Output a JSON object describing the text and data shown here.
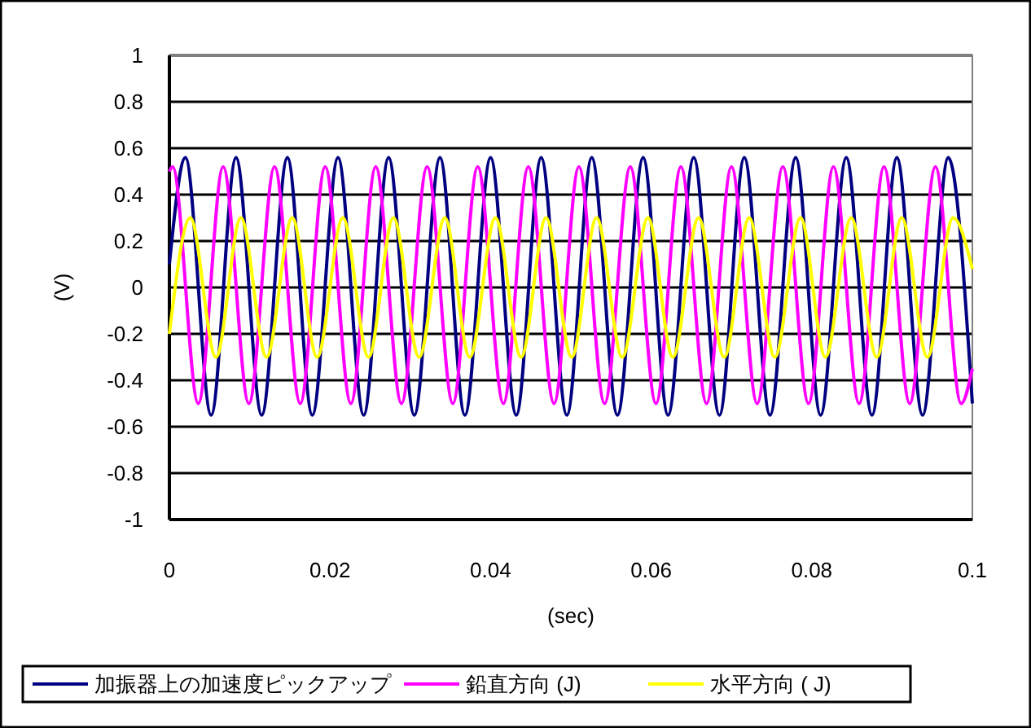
{
  "chart_data": {
    "type": "line",
    "xlabel": "(sec)",
    "ylabel": "(V)",
    "xlim": [
      0,
      0.1
    ],
    "xticks": [
      0,
      0.02,
      0.04,
      0.06,
      0.08,
      0.1
    ],
    "ylim": [
      -1,
      1
    ],
    "yticks": [
      -1,
      -0.8,
      -0.6,
      -0.4,
      -0.2,
      0,
      0.2,
      0.4,
      0.6,
      0.8,
      1
    ],
    "grid": "y",
    "legend": "bottom",
    "marker": "none",
    "line_style": "solid",
    "series": [
      {
        "name": "加振器上の加速度ピックアップ",
        "color": "#000080",
        "x": [
          0,
          0.002,
          0.0052,
          0.0083,
          0.0115,
          0.0147,
          0.0178,
          0.021,
          0.0242,
          0.0273,
          0.0305,
          0.0337,
          0.0368,
          0.04,
          0.0432,
          0.0463,
          0.0495,
          0.0526,
          0.0558,
          0.059,
          0.0621,
          0.0653,
          0.0685,
          0.0716,
          0.0748,
          0.078,
          0.0811,
          0.0843,
          0.0875,
          0.0906,
          0.0938,
          0.097,
          0.1
        ],
        "values": [
          0.1,
          0.56,
          -0.55,
          0.56,
          -0.55,
          0.56,
          -0.55,
          0.56,
          -0.55,
          0.56,
          -0.55,
          0.56,
          -0.55,
          0.56,
          -0.55,
          0.56,
          -0.55,
          0.56,
          -0.55,
          0.56,
          -0.55,
          0.56,
          -0.55,
          0.56,
          -0.55,
          0.56,
          -0.55,
          0.56,
          -0.55,
          0.56,
          -0.55,
          0.56,
          -0.5
        ]
      },
      {
        "name": "鉛直方向 (J)",
        "color": "#ff00ff",
        "x": [
          0,
          0.0004,
          0.0036,
          0.0067,
          0.0099,
          0.0131,
          0.0163,
          0.0194,
          0.0226,
          0.0257,
          0.0289,
          0.0321,
          0.0353,
          0.0384,
          0.0416,
          0.0447,
          0.0479,
          0.051,
          0.0542,
          0.0574,
          0.0606,
          0.0637,
          0.0669,
          0.07,
          0.0732,
          0.0764,
          0.0796,
          0.0827,
          0.0859,
          0.089,
          0.0922,
          0.0954,
          0.0986,
          0.1
        ],
        "values": [
          0.5,
          0.52,
          -0.5,
          0.52,
          -0.5,
          0.52,
          -0.5,
          0.52,
          -0.5,
          0.52,
          -0.5,
          0.52,
          -0.5,
          0.52,
          -0.5,
          0.52,
          -0.5,
          0.52,
          -0.5,
          0.52,
          -0.5,
          0.52,
          -0.5,
          0.52,
          -0.5,
          0.52,
          -0.5,
          0.52,
          -0.5,
          0.52,
          -0.5,
          0.52,
          -0.5,
          -0.35
        ]
      },
      {
        "name": "水平方向 ( J)",
        "color": "#ffff00",
        "x": [
          0,
          0.0026,
          0.0058,
          0.0089,
          0.0121,
          0.0153,
          0.0184,
          0.0216,
          0.0248,
          0.0279,
          0.0311,
          0.0343,
          0.0374,
          0.0406,
          0.0438,
          0.0469,
          0.0501,
          0.0532,
          0.0564,
          0.0596,
          0.0627,
          0.0659,
          0.0691,
          0.0722,
          0.0754,
          0.0786,
          0.0817,
          0.0849,
          0.0881,
          0.0912,
          0.0944,
          0.0976,
          0.1
        ],
        "values": [
          -0.2,
          0.3,
          -0.3,
          0.3,
          -0.3,
          0.3,
          -0.3,
          0.3,
          -0.3,
          0.3,
          -0.3,
          0.3,
          -0.3,
          0.3,
          -0.3,
          0.3,
          -0.3,
          0.3,
          -0.3,
          0.3,
          -0.3,
          0.3,
          -0.3,
          0.3,
          -0.3,
          0.3,
          -0.3,
          0.3,
          -0.3,
          0.3,
          -0.3,
          0.3,
          0.08
        ]
      }
    ]
  }
}
